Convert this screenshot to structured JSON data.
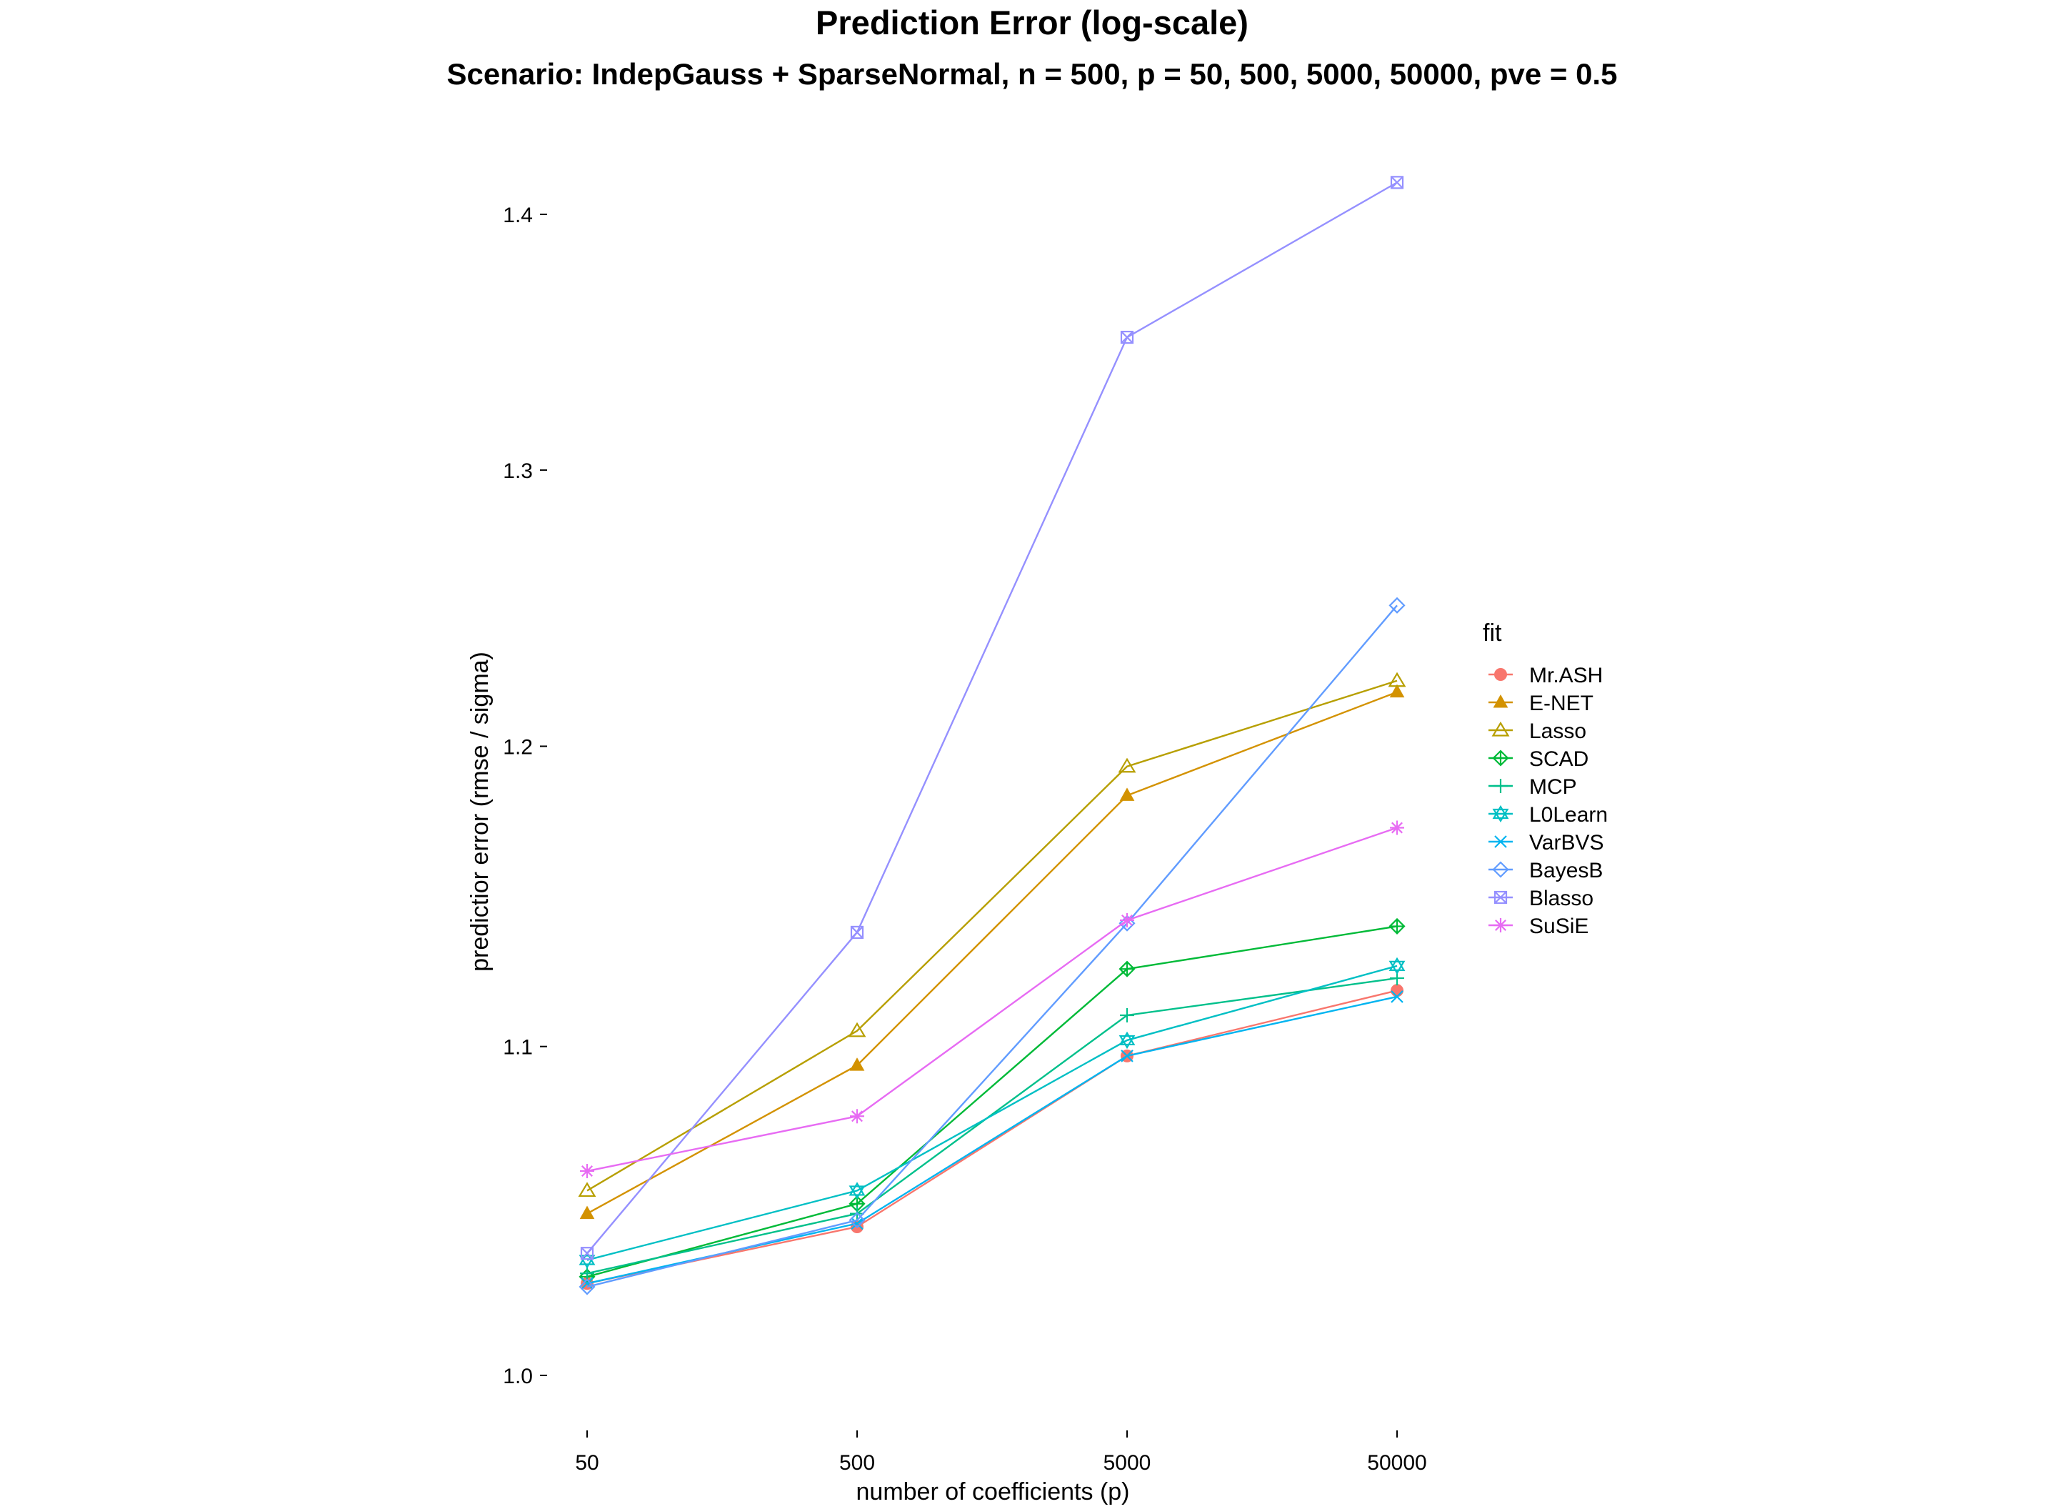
{
  "chart_data": {
    "type": "line",
    "title": "Prediction Error (log-scale)",
    "subtitle": "Scenario: IndepGauss + SparseNormal, n = 500, p = 50, 500, 5000, 50000, pve = 0.5",
    "xlabel": "number of coefficients (p)",
    "ylabel": "predictior error (rmse / sigma)",
    "x_scale": "log",
    "y_scale": "log",
    "categories": [
      "50",
      "500",
      "5000",
      "50000"
    ],
    "y_ticks": [
      "1.0",
      "1.1",
      "1.2",
      "1.3",
      "1.4"
    ],
    "y_tick_values": [
      1.0,
      1.1,
      1.2,
      1.3,
      1.4
    ],
    "ylim": [
      0.985,
      1.42
    ],
    "legend": {
      "title": "fit",
      "position": "right"
    },
    "grid": false,
    "series": [
      {
        "name": "Mr.ASH",
        "color": "#F8766D",
        "shape": "filled-circle",
        "values": [
          1.027,
          1.044,
          1.097,
          1.118
        ]
      },
      {
        "name": "E-NET",
        "color": "#D39200",
        "shape": "filled-triangle",
        "values": [
          1.048,
          1.094,
          1.183,
          1.219
        ]
      },
      {
        "name": "Lasso",
        "color": "#B79F00",
        "shape": "open-triangle",
        "values": [
          1.055,
          1.105,
          1.193,
          1.223
        ]
      },
      {
        "name": "SCAD",
        "color": "#00BA38",
        "shape": "diamond-plus",
        "values": [
          1.029,
          1.051,
          1.125,
          1.139
        ]
      },
      {
        "name": "MCP",
        "color": "#00C08B",
        "shape": "plus",
        "values": [
          1.03,
          1.048,
          1.11,
          1.122
        ]
      },
      {
        "name": "L0Learn",
        "color": "#00BFC4",
        "shape": "star-of-david",
        "values": [
          1.034,
          1.055,
          1.102,
          1.126
        ]
      },
      {
        "name": "VarBVS",
        "color": "#00B4F0",
        "shape": "cross",
        "values": [
          1.027,
          1.045,
          1.097,
          1.116
        ]
      },
      {
        "name": "BayesB",
        "color": "#619CFF",
        "shape": "open-diamond",
        "values": [
          1.026,
          1.046,
          1.14,
          1.25
        ]
      },
      {
        "name": "Blasso",
        "color": "#9590FF",
        "shape": "square-x",
        "values": [
          1.036,
          1.137,
          1.351,
          1.413
        ]
      },
      {
        "name": "SuSiE",
        "color": "#E76BF3",
        "shape": "asterisk",
        "values": [
          1.061,
          1.078,
          1.141,
          1.172
        ]
      }
    ]
  }
}
